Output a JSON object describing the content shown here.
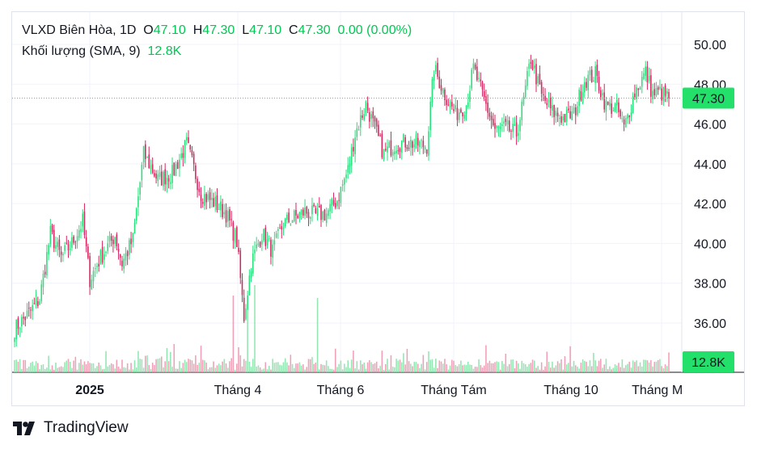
{
  "legend": {
    "title": "VLXD Biên Hòa, 1D",
    "open_label": "O",
    "open": "47.10",
    "high_label": "H",
    "high": "47.30",
    "low_label": "L",
    "low": "47.10",
    "close_label": "C",
    "close": "47.30",
    "change": "0.00 (0.00%)",
    "volume_label": "Khối lượng (SMA, 9)",
    "volume_value": "12.8K"
  },
  "price_badge": "47.30",
  "volume_badge": "12.8K",
  "branding": "TradingView",
  "colors": {
    "up": "#26e07a",
    "down": "#d6245e",
    "badge": "#22e06a",
    "grid": "#f0f3fa"
  },
  "chart_data": {
    "type": "candlestick",
    "interval": "1D",
    "y_ticks": [
      "36.00",
      "38.00",
      "40.00",
      "42.00",
      "44.00",
      "46.00",
      "48.00",
      "50.00"
    ],
    "ylim": [
      34.6,
      51.2
    ],
    "x_ticks": [
      "2025",
      "Tháng 4",
      "Tháng 6",
      "Tháng Tám",
      "Tháng 10",
      "Tháng Mư"
    ],
    "last_close": 47.3,
    "anchors": [
      [
        0,
        35.7
      ],
      [
        8,
        36.5
      ],
      [
        14,
        37.2
      ],
      [
        20,
        40.5
      ],
      [
        26,
        39.3
      ],
      [
        32,
        40.0
      ],
      [
        38,
        41.1
      ],
      [
        42,
        38.2
      ],
      [
        48,
        39.3
      ],
      [
        56,
        40.4
      ],
      [
        60,
        39.0
      ],
      [
        66,
        40.2
      ],
      [
        72,
        44.5
      ],
      [
        80,
        43.2
      ],
      [
        88,
        43.5
      ],
      [
        96,
        45.0
      ],
      [
        104,
        42.5
      ],
      [
        112,
        42.0
      ],
      [
        118,
        41.5
      ],
      [
        124,
        40.1
      ],
      [
        128,
        36.3
      ],
      [
        132,
        39.0
      ],
      [
        138,
        40.5
      ],
      [
        144,
        39.6
      ],
      [
        150,
        41.0
      ],
      [
        156,
        41.3
      ],
      [
        162,
        41.6
      ],
      [
        168,
        41.4
      ],
      [
        174,
        41.5
      ],
      [
        180,
        42.2
      ],
      [
        186,
        43.7
      ],
      [
        190,
        45.5
      ],
      [
        196,
        47.0
      ],
      [
        202,
        45.5
      ],
      [
        206,
        44.5
      ],
      [
        212,
        45.0
      ],
      [
        218,
        45.1
      ],
      [
        224,
        45.0
      ],
      [
        230,
        44.9
      ],
      [
        234,
        48.8
      ],
      [
        240,
        47.5
      ],
      [
        246,
        46.5
      ],
      [
        252,
        47.0
      ],
      [
        256,
        48.8
      ],
      [
        262,
        47.2
      ],
      [
        268,
        45.7
      ],
      [
        274,
        45.8
      ],
      [
        280,
        45.5
      ],
      [
        284,
        47.2
      ],
      [
        288,
        49.3
      ],
      [
        294,
        47.4
      ],
      [
        300,
        46.6
      ],
      [
        306,
        46.3
      ],
      [
        312,
        46.5
      ],
      [
        318,
        48.2
      ],
      [
        324,
        48.5
      ],
      [
        330,
        46.9
      ],
      [
        336,
        46.8
      ],
      [
        340,
        45.8
      ],
      [
        346,
        47.6
      ],
      [
        352,
        48.6
      ],
      [
        356,
        47.5
      ],
      [
        360,
        47.6
      ],
      [
        365,
        47.3
      ]
    ],
    "volume_spikes": [
      [
        98,
        16
      ],
      [
        214,
        35
      ],
      [
        288,
        95
      ],
      [
        306,
        78
      ],
      [
        314,
        108
      ],
      [
        392,
        92
      ],
      [
        528,
        26
      ],
      [
        733,
        24
      ]
    ]
  }
}
